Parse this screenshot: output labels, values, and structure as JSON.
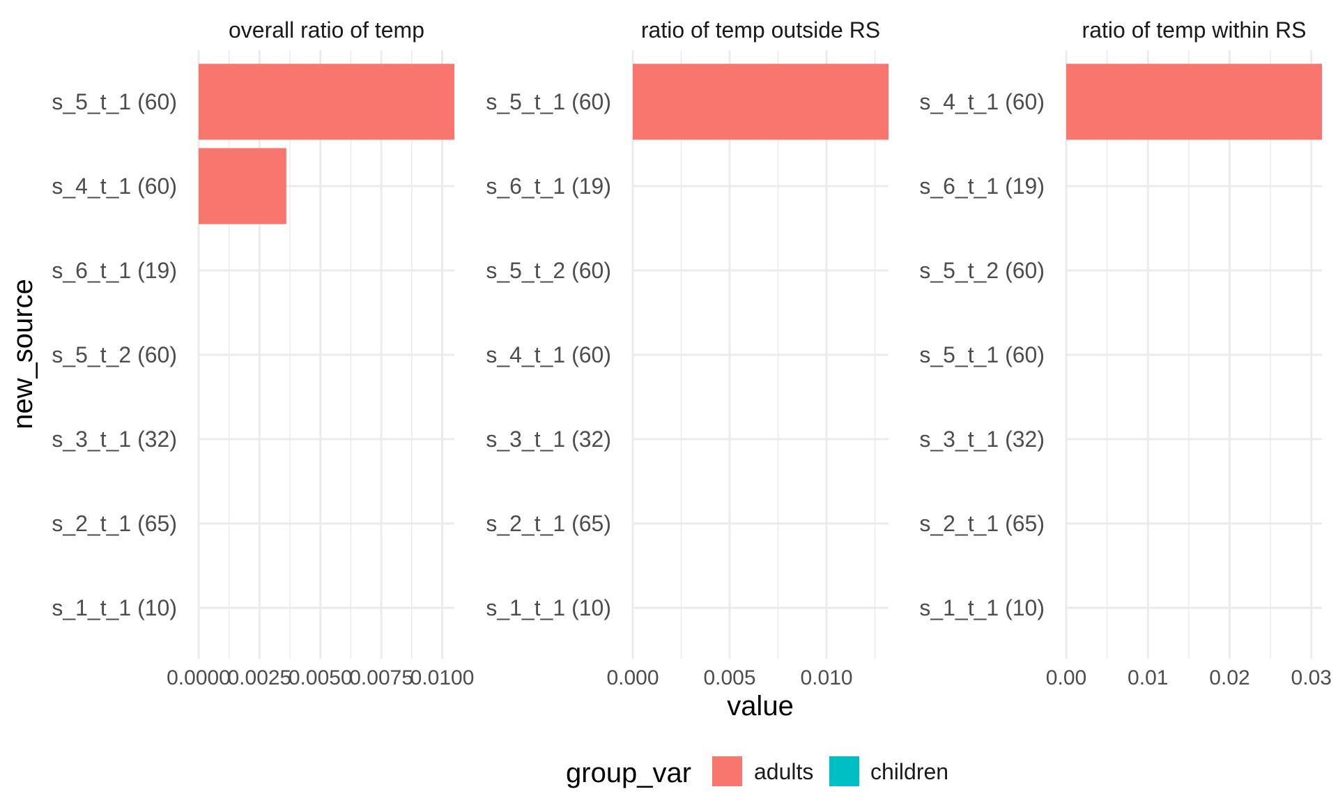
{
  "chart_data": {
    "type": "bar",
    "orientation": "horizontal",
    "facets": [
      {
        "strip": "overall ratio of temp",
        "categories": [
          "s_5_t_1 (60)",
          "s_4_t_1 (60)",
          "s_6_t_1 (19)",
          "s_5_t_2 (60)",
          "s_3_t_1 (32)",
          "s_2_t_1 (65)",
          "s_1_t_1 (10)"
        ],
        "values": [
          0.0105,
          0.0036,
          0,
          0,
          0,
          0,
          0
        ],
        "groups": [
          "adults",
          "adults",
          "adults",
          "adults",
          "adults",
          "adults",
          "adults"
        ],
        "xlim": [
          0,
          0.0105
        ],
        "xticks": [
          0,
          0.0025,
          0.005,
          0.0075,
          0.01
        ],
        "xtick_labels": [
          "0.0000",
          "0.0025",
          "0.0050",
          "0.0075",
          "0.0100"
        ]
      },
      {
        "strip": "ratio of temp outside RS",
        "categories": [
          "s_5_t_1 (60)",
          "s_6_t_1 (19)",
          "s_5_t_2 (60)",
          "s_4_t_1 (60)",
          "s_3_t_1 (32)",
          "s_2_t_1 (65)",
          "s_1_t_1 (10)"
        ],
        "values": [
          0.0132,
          0,
          0,
          0,
          0,
          0,
          0
        ],
        "groups": [
          "adults",
          "adults",
          "adults",
          "adults",
          "adults",
          "adults",
          "adults"
        ],
        "xlim": [
          0,
          0.0132
        ],
        "xticks": [
          0,
          0.005,
          0.01
        ],
        "xtick_labels": [
          "0.000",
          "0.005",
          "0.010"
        ]
      },
      {
        "strip": "ratio of temp within RS",
        "categories": [
          "s_4_t_1 (60)",
          "s_6_t_1 (19)",
          "s_5_t_2 (60)",
          "s_5_t_1 (60)",
          "s_3_t_1 (32)",
          "s_2_t_1 (65)",
          "s_1_t_1 (10)"
        ],
        "values": [
          0.0313,
          0,
          0,
          0,
          0,
          0,
          0
        ],
        "groups": [
          "adults",
          "adults",
          "adults",
          "adults",
          "adults",
          "adults",
          "adults"
        ],
        "xlim": [
          0,
          0.0313
        ],
        "xticks": [
          0,
          0.01,
          0.02,
          0.03
        ],
        "xtick_labels": [
          "0.00",
          "0.01",
          "0.02",
          "0.03"
        ]
      }
    ],
    "xlabel": "value",
    "ylabel": "new_source",
    "legend": {
      "title": "group_var",
      "position": "bottom",
      "items": [
        {
          "label": "adults",
          "color": "#F8766D"
        },
        {
          "label": "children",
          "color": "#00BFC4"
        }
      ]
    },
    "grid": true,
    "theme": "minimal"
  }
}
